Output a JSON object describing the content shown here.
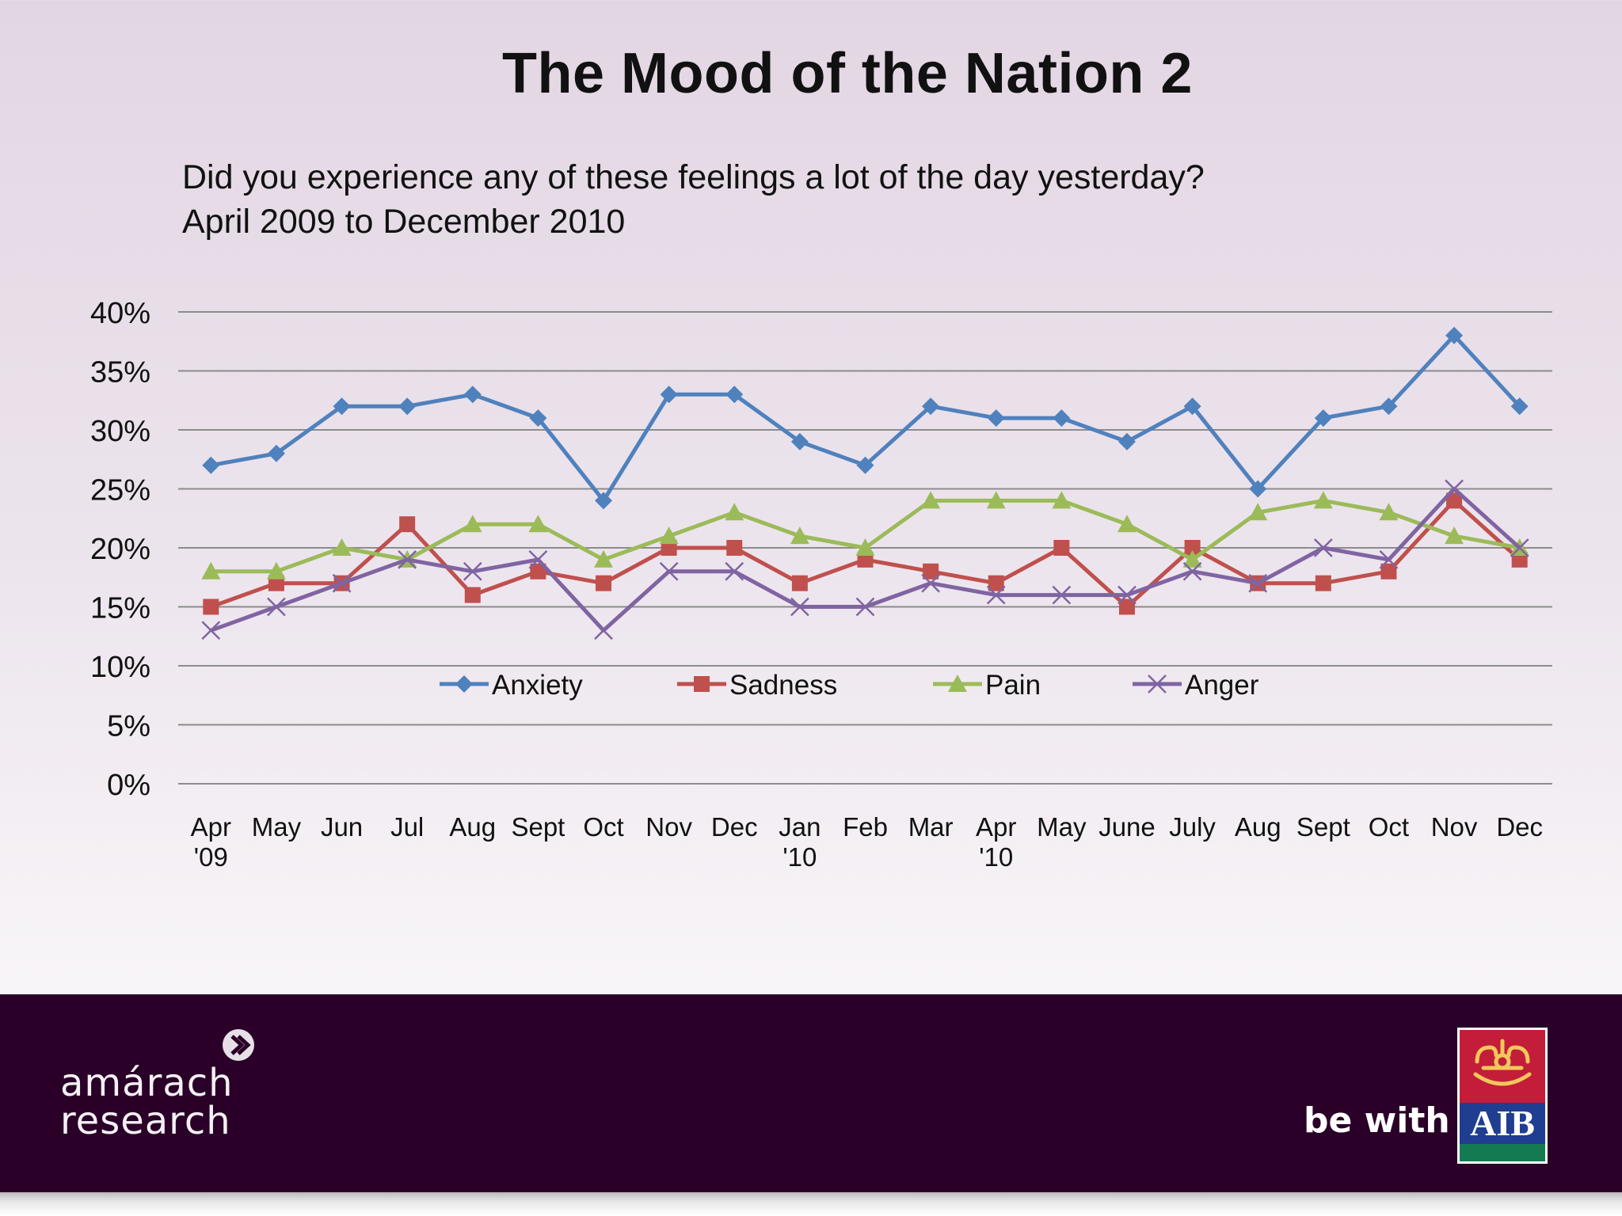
{
  "title": "The Mood of the Nation 2",
  "subtitle_line1": "Did you experience any of these feelings a lot of the day yesterday?",
  "subtitle_line2": "April 2009 to December 2010",
  "footer": {
    "amarach_line1": "amárach",
    "amarach_line2": "research",
    "tagline": "be with",
    "aib_text": "AIB"
  },
  "colors": {
    "Anxiety": "#4f81bd",
    "Sadness": "#c0504d",
    "Pain": "#9bbb59",
    "Anger": "#8064a2",
    "gridline": "#8c8c8c",
    "footer_bg": "#2a0028"
  },
  "chart_data": {
    "type": "line",
    "x": [
      "Apr\n'09",
      "May",
      "Jun",
      "Jul",
      "Aug",
      "Sept",
      "Oct",
      "Nov",
      "Dec",
      "Jan\n'10",
      "Feb",
      "Mar",
      "Apr\n'10",
      "May",
      "June",
      "July",
      "Aug",
      "Sept",
      "Oct",
      "Nov",
      "Dec"
    ],
    "ylim": [
      0,
      40
    ],
    "y_ticks": [
      "0%",
      "5%",
      "10%",
      "15%",
      "20%",
      "25%",
      "30%",
      "35%",
      "40%"
    ],
    "y_unit": "%",
    "grid": true,
    "legend_position": "inside-bottom-center",
    "series": [
      {
        "name": "Anxiety",
        "marker": "diamond",
        "values": [
          27,
          28,
          32,
          32,
          33,
          31,
          24,
          33,
          33,
          29,
          27,
          32,
          31,
          31,
          29,
          32,
          25,
          31,
          32,
          38,
          32
        ]
      },
      {
        "name": "Sadness",
        "marker": "square",
        "values": [
          15,
          17,
          17,
          22,
          16,
          18,
          17,
          20,
          20,
          17,
          19,
          18,
          17,
          20,
          15,
          20,
          17,
          17,
          18,
          24,
          19
        ]
      },
      {
        "name": "Pain",
        "marker": "triangle",
        "values": [
          18,
          18,
          20,
          19,
          22,
          22,
          19,
          21,
          23,
          21,
          20,
          24,
          24,
          24,
          22,
          19,
          23,
          24,
          23,
          21,
          20
        ]
      },
      {
        "name": "Anger",
        "marker": "x",
        "values": [
          13,
          15,
          17,
          19,
          18,
          19,
          13,
          18,
          18,
          15,
          15,
          17,
          16,
          16,
          16,
          18,
          17,
          20,
          19,
          25,
          20
        ]
      }
    ]
  }
}
